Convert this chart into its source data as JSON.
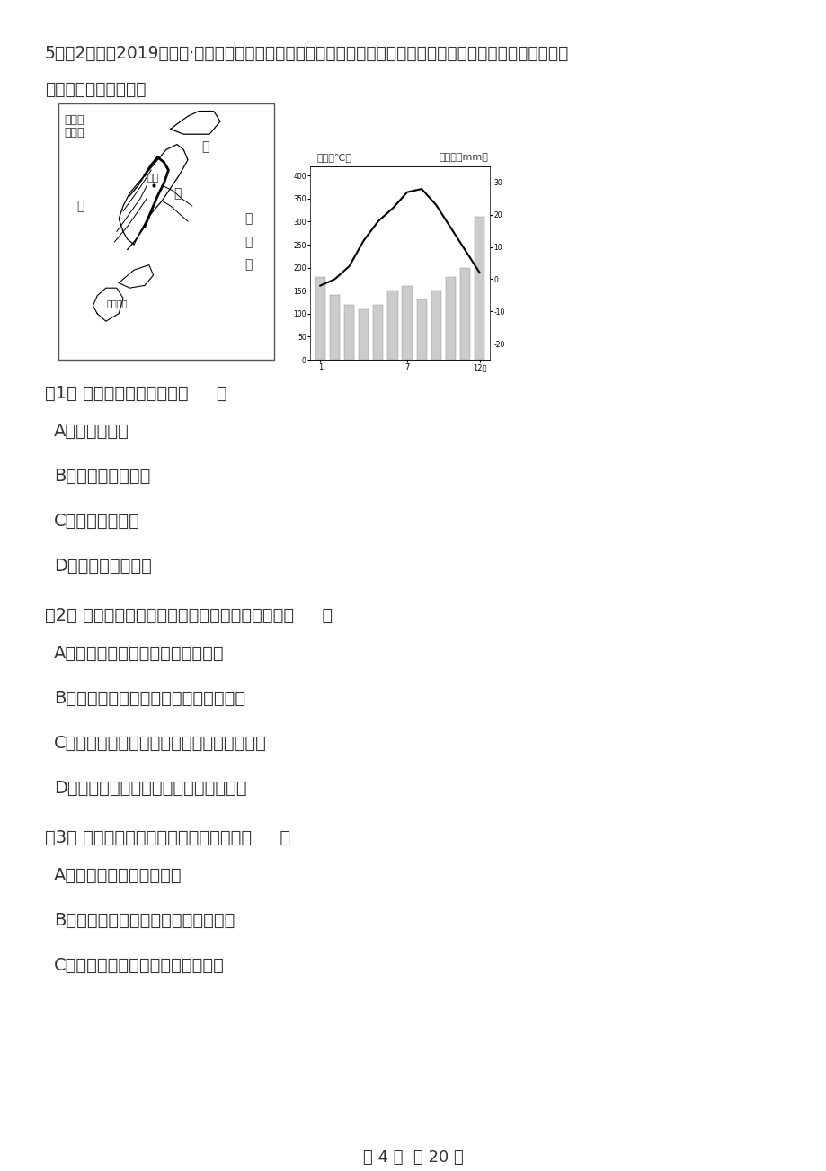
{
  "title_line1": "5．（2分）（2019高三上·石嘴山期中）读『日本山河分布示意图』和『富山市气温和降水季节分布示意图』，",
  "title_line2": "读下图完成下列各题。",
  "map_legend_mountain": "一山脉",
  "map_legend_river": "一河流",
  "chart_ylabel_left": "气温（℃）",
  "chart_ylabel_right": "降水量（mm）",
  "temp_values": [
    -2,
    0,
    4,
    12,
    18,
    22,
    27,
    28,
    23,
    16,
    9,
    2
  ],
  "precip_values": [
    180,
    140,
    120,
    110,
    120,
    150,
    160,
    130,
    150,
    180,
    200,
    310
  ],
  "q1_text": "（1） 富山市的气候类型为（     ）",
  "q1_A": "A．地中海气候",
  "q1_B": "B．温带海洋性气候",
  "q1_C": "C．温带季风气候",
  "q1_D": "D．亚热带季风气候",
  "q2_text": "（2） 关于富山市降水特征及其成因叙述正确的是（     ）",
  "q2_A": "A．冬季降水丰富处于冬季风迎风坡",
  "q2_B": "B．降水季节分配较均匀常年受西风影响",
  "q2_C": "C．夏季降水较少与气压带风带季节移动有关",
  "q2_D": "D．降水总量丰富常年受赤道低气压控制",
  "q3_text": "（3） 日本多山且河流众多，其河流特征（     ）",
  "q3_A": "A．径流量丰富，利于航运",
  "q3_B": "B．瀮户内海沿岐的河流径流量最丰富",
  "q3_C": "C．径流量季节变化明显，冬季断流",
  "footer": "第 4 页  共 20 页",
  "bg_color": "#ffffff",
  "text_color": "#333333"
}
